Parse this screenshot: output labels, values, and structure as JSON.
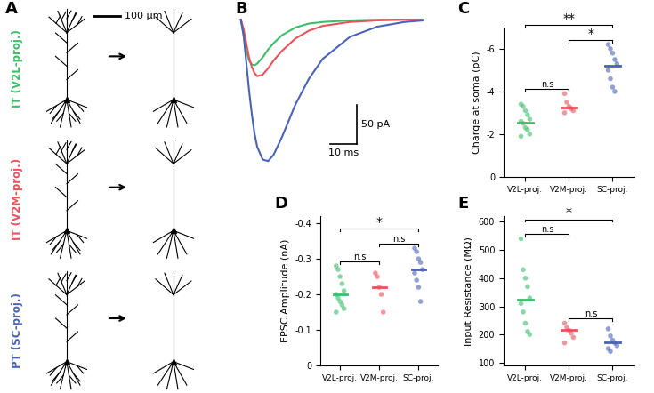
{
  "diagram": {
    "label": "A",
    "scale_bar": "100 µm",
    "neurons": [
      {
        "label": "IT (V2L-proj.)",
        "color": "#3dbd6b"
      },
      {
        "label": "IT (V2M-proj.)",
        "color": "#e8525c"
      },
      {
        "label": "PT (SC-proj.)",
        "color": "#4a63b5"
      }
    ]
  },
  "chart_data": [
    {
      "label": "B",
      "type": "line",
      "tick_labels": false,
      "x": [
        0,
        1,
        2,
        3,
        4,
        5,
        6,
        8,
        10,
        12,
        15,
        20,
        25,
        30,
        40,
        50,
        60,
        67
      ],
      "xlim": [
        -2,
        70
      ],
      "ylim": [
        -200,
        10
      ],
      "series": [
        {
          "color": "#3dbd6b",
          "values": [
            0,
            -20,
            -40,
            -52,
            -57,
            -58,
            -56,
            -48,
            -38,
            -30,
            -20,
            -10,
            -5,
            -3,
            -1,
            0,
            0,
            0
          ]
        },
        {
          "color": "#e8525c",
          "values": [
            0,
            -12,
            -30,
            -48,
            -60,
            -68,
            -72,
            -70,
            -62,
            -52,
            -40,
            -24,
            -14,
            -8,
            -3,
            -1,
            0,
            0
          ]
        },
        {
          "color": "#4a63b5",
          "values": [
            0,
            -20,
            -55,
            -90,
            -120,
            -145,
            -162,
            -178,
            -180,
            -172,
            -150,
            -108,
            -75,
            -50,
            -22,
            -9,
            -3,
            -1
          ]
        }
      ],
      "scale_bar": {
        "x": 10,
        "x_label": "10 ms",
        "y": 50,
        "y_label": "50 pA"
      }
    },
    {
      "label": "C",
      "type": "strip",
      "categories": [
        "V2L-proj.",
        "V2M-proj.",
        "SC-proj."
      ],
      "colors": [
        "#3dbd6b",
        "#e8525c",
        "#4a63b5"
      ],
      "points": [
        [
          -3.4,
          -3.3,
          -3.1,
          -2.9,
          -2.7,
          -2.6,
          -2.5,
          -2.3,
          -2.2,
          -2.0,
          -1.9
        ],
        [
          -3.9,
          -3.5,
          -3.3,
          -3.2,
          -3.1,
          -3.0
        ],
        [
          -6.2,
          -6.0,
          -5.8,
          -5.5,
          -5.3,
          -5.0,
          -4.6,
          -4.2,
          -4.0
        ]
      ],
      "means": [
        -2.55,
        -3.25,
        -5.2
      ],
      "ylabel": "Charge at soma (pC)",
      "ylim": [
        0,
        -7
      ],
      "yticks": [
        0,
        -2,
        -4,
        -6
      ],
      "significance": [
        {
          "between": [
            "V2L-proj.",
            "V2M-proj."
          ],
          "label": "n.s"
        },
        {
          "between": [
            "V2M-proj.",
            "SC-proj."
          ],
          "label": "*"
        },
        {
          "between": [
            "V2L-proj.",
            "SC-proj."
          ],
          "label": "**"
        }
      ]
    },
    {
      "label": "D",
      "type": "strip",
      "categories": [
        "V2L-proj.",
        "V2M-proj.",
        "SC-proj."
      ],
      "colors": [
        "#3dbd6b",
        "#e8525c",
        "#4a63b5"
      ],
      "points": [
        [
          -0.28,
          -0.27,
          -0.25,
          -0.23,
          -0.21,
          -0.2,
          -0.19,
          -0.18,
          -0.17,
          -0.16,
          -0.15
        ],
        [
          -0.26,
          -0.25,
          -0.22,
          -0.2,
          -0.15
        ],
        [
          -0.33,
          -0.32,
          -0.3,
          -0.29,
          -0.27,
          -0.26,
          -0.24,
          -0.22,
          -0.18
        ]
      ],
      "means": [
        -0.2,
        -0.22,
        -0.27
      ],
      "ylabel": "EPSC Amplitude (nA)",
      "ylim": [
        0,
        -0.42
      ],
      "yticks": [
        0,
        -0.1,
        -0.2,
        -0.3,
        -0.4
      ],
      "significance": [
        {
          "between": [
            "V2L-proj.",
            "V2M-proj."
          ],
          "label": "n.s"
        },
        {
          "between": [
            "V2M-proj.",
            "SC-proj."
          ],
          "label": "n.s"
        },
        {
          "between": [
            "V2L-proj.",
            "SC-proj."
          ],
          "label": "*"
        }
      ]
    },
    {
      "label": "E",
      "type": "strip",
      "categories": [
        "V2L-proj.",
        "V2M-proj.",
        "SC-proj."
      ],
      "colors": [
        "#3dbd6b",
        "#e8525c",
        "#4a63b5"
      ],
      "points": [
        [
          540,
          430,
          400,
          370,
          330,
          310,
          280,
          240,
          210,
          200
        ],
        [
          240,
          225,
          215,
          205,
          190,
          170
        ],
        [
          220,
          195,
          180,
          170,
          160,
          150,
          140
        ]
      ],
      "means": [
        325,
        215,
        172
      ],
      "ylabel": "Input Resistance (MΩ)",
      "ylim": [
        90,
        620
      ],
      "yticks": [
        100,
        200,
        300,
        400,
        500,
        600
      ],
      "significance": [
        {
          "between": [
            "V2L-proj.",
            "V2M-proj."
          ],
          "label": "n.s"
        },
        {
          "between": [
            "V2M-proj.",
            "SC-proj."
          ],
          "label": "n.s"
        },
        {
          "between": [
            "V2L-proj.",
            "SC-proj."
          ],
          "label": "*"
        }
      ]
    }
  ]
}
